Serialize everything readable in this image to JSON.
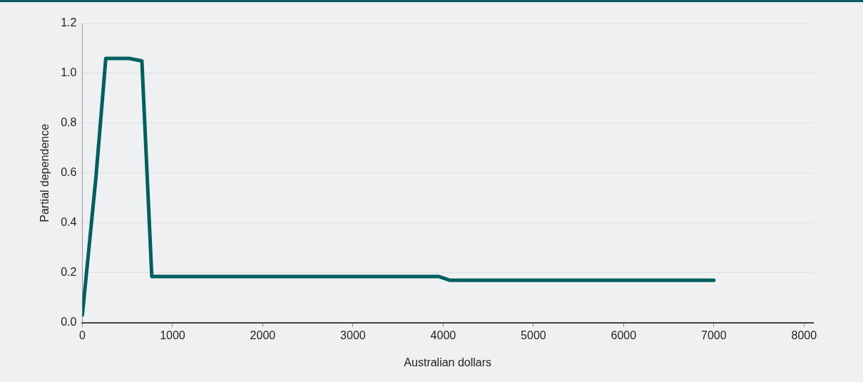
{
  "chart_data": {
    "type": "line",
    "xlabel": "Australian dollars",
    "ylabel": "Partial dependence",
    "x": [
      0,
      150,
      260,
      520,
      660,
      770,
      3950,
      4070,
      7000
    ],
    "series": [
      {
        "color": "#00605f",
        "values": [
          0.03,
          0.58,
          1.06,
          1.06,
          1.05,
          0.185,
          0.185,
          0.17,
          0.17
        ]
      }
    ],
    "xlim": [
      0,
      8100
    ],
    "xticks": [
      0,
      1000,
      2000,
      3000,
      4000,
      5000,
      6000,
      7000,
      8000
    ],
    "ylim": [
      0,
      1.2
    ],
    "yticks": [
      {
        "value": 0,
        "label": "0.0"
      },
      {
        "value": 0.2,
        "label": "0.2"
      },
      {
        "value": 0.4,
        "label": "0.4"
      },
      {
        "value": 0.6,
        "label": "0.6"
      },
      {
        "value": 0.8,
        "label": "0.8"
      },
      {
        "value": 1,
        "label": "1.0"
      },
      {
        "value": 1.2,
        "label": "1.2"
      }
    ],
    "grid": "y",
    "legend": false,
    "marker": "none",
    "line_style": "solid"
  }
}
